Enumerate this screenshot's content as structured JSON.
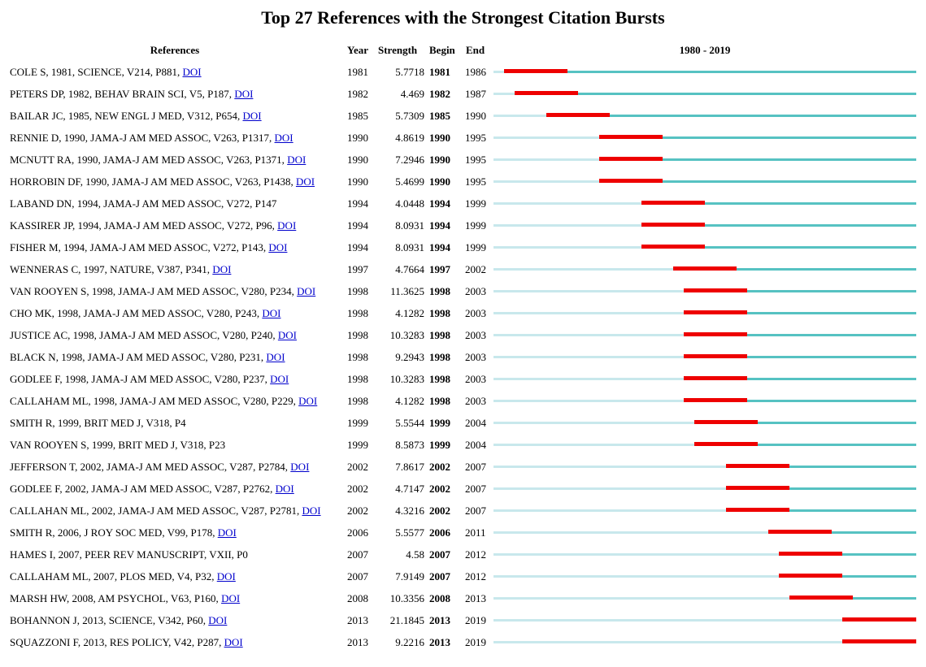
{
  "title": "Top 27 References with the Strongest Citation Bursts",
  "headers": {
    "references": "References",
    "year": "Year",
    "strength": "Strength",
    "begin": "Begin",
    "end": "End",
    "range": "1980 - 2019"
  },
  "colors": {
    "burst": "#ee0000",
    "active": "#56c2c2",
    "inactive": "#c8e8ec",
    "link": "#0000cc"
  },
  "chart_data": {
    "type": "table",
    "title": "Top 27 References with the Strongest Citation Bursts",
    "timeline_range": [
      1980,
      2019
    ],
    "rows": [
      {
        "ref": "COLE S, 1981, SCIENCE, V214, P881, ",
        "doi": "DOI",
        "year": 1981,
        "strength": "5.7718",
        "begin": 1981,
        "end": 1986
      },
      {
        "ref": "PETERS DP, 1982, BEHAV BRAIN SCI, V5, P187, ",
        "doi": "DOI",
        "year": 1982,
        "strength": "4.469",
        "begin": 1982,
        "end": 1987
      },
      {
        "ref": "BAILAR JC, 1985, NEW ENGL J MED, V312, P654, ",
        "doi": "DOI",
        "year": 1985,
        "strength": "5.7309",
        "begin": 1985,
        "end": 1990
      },
      {
        "ref": "RENNIE D, 1990, JAMA-J AM MED ASSOC, V263, P1317, ",
        "doi": "DOI",
        "year": 1990,
        "strength": "4.8619",
        "begin": 1990,
        "end": 1995
      },
      {
        "ref": "MCNUTT RA, 1990, JAMA-J AM MED ASSOC, V263, P1371, ",
        "doi": "DOI",
        "year": 1990,
        "strength": "7.2946",
        "begin": 1990,
        "end": 1995
      },
      {
        "ref": "HORROBIN DF, 1990, JAMA-J AM MED ASSOC, V263, P1438, ",
        "doi": "DOI",
        "year": 1990,
        "strength": "5.4699",
        "begin": 1990,
        "end": 1995
      },
      {
        "ref": "LABAND DN, 1994, JAMA-J AM MED ASSOC, V272, P147",
        "doi": "",
        "year": 1994,
        "strength": "4.0448",
        "begin": 1994,
        "end": 1999
      },
      {
        "ref": "KASSIRER JP, 1994, JAMA-J AM MED ASSOC, V272, P96, ",
        "doi": "DOI",
        "year": 1994,
        "strength": "8.0931",
        "begin": 1994,
        "end": 1999
      },
      {
        "ref": "FISHER M, 1994, JAMA-J AM MED ASSOC, V272, P143, ",
        "doi": "DOI",
        "year": 1994,
        "strength": "8.0931",
        "begin": 1994,
        "end": 1999
      },
      {
        "ref": "WENNERAS C, 1997, NATURE, V387, P341, ",
        "doi": "DOI",
        "year": 1997,
        "strength": "4.7664",
        "begin": 1997,
        "end": 2002
      },
      {
        "ref": "VAN ROOYEN S, 1998, JAMA-J AM MED ASSOC, V280, P234, ",
        "doi": "DOI",
        "year": 1998,
        "strength": "11.3625",
        "begin": 1998,
        "end": 2003
      },
      {
        "ref": "CHO MK, 1998, JAMA-J AM MED ASSOC, V280, P243, ",
        "doi": "DOI",
        "year": 1998,
        "strength": "4.1282",
        "begin": 1998,
        "end": 2003
      },
      {
        "ref": "JUSTICE AC, 1998, JAMA-J AM MED ASSOC, V280, P240, ",
        "doi": "DOI",
        "year": 1998,
        "strength": "10.3283",
        "begin": 1998,
        "end": 2003
      },
      {
        "ref": "BLACK N, 1998, JAMA-J AM MED ASSOC, V280, P231, ",
        "doi": "DOI",
        "year": 1998,
        "strength": "9.2943",
        "begin": 1998,
        "end": 2003
      },
      {
        "ref": "GODLEE F, 1998, JAMA-J AM MED ASSOC, V280, P237, ",
        "doi": "DOI",
        "year": 1998,
        "strength": "10.3283",
        "begin": 1998,
        "end": 2003
      },
      {
        "ref": "CALLAHAM ML, 1998, JAMA-J AM MED ASSOC, V280, P229, ",
        "doi": "DOI",
        "year": 1998,
        "strength": "4.1282",
        "begin": 1998,
        "end": 2003
      },
      {
        "ref": "SMITH R, 1999, BRIT MED J, V318, P4",
        "doi": "",
        "year": 1999,
        "strength": "5.5544",
        "begin": 1999,
        "end": 2004
      },
      {
        "ref": "VAN ROOYEN S, 1999, BRIT MED J, V318, P23",
        "doi": "",
        "year": 1999,
        "strength": "8.5873",
        "begin": 1999,
        "end": 2004
      },
      {
        "ref": "JEFFERSON T, 2002, JAMA-J AM MED ASSOC, V287, P2784, ",
        "doi": "DOI",
        "year": 2002,
        "strength": "7.8617",
        "begin": 2002,
        "end": 2007
      },
      {
        "ref": "GODLEE F, 2002, JAMA-J AM MED ASSOC, V287, P2762, ",
        "doi": "DOI",
        "year": 2002,
        "strength": "4.7147",
        "begin": 2002,
        "end": 2007
      },
      {
        "ref": "CALLAHAN ML, 2002, JAMA-J AM MED ASSOC, V287, P2781, ",
        "doi": "DOI",
        "year": 2002,
        "strength": "4.3216",
        "begin": 2002,
        "end": 2007
      },
      {
        "ref": "SMITH R, 2006, J ROY SOC MED, V99, P178, ",
        "doi": "DOI",
        "year": 2006,
        "strength": "5.5577",
        "begin": 2006,
        "end": 2011
      },
      {
        "ref": "HAMES I, 2007, PEER REV MANUSCRIPT, VXII, P0",
        "doi": "",
        "year": 2007,
        "strength": "4.58",
        "begin": 2007,
        "end": 2012
      },
      {
        "ref": "CALLAHAM ML, 2007, PLOS MED, V4, P32, ",
        "doi": "DOI",
        "year": 2007,
        "strength": "7.9149",
        "begin": 2007,
        "end": 2012
      },
      {
        "ref": "MARSH HW, 2008, AM PSYCHOL, V63, P160, ",
        "doi": "DOI",
        "year": 2008,
        "strength": "10.3356",
        "begin": 2008,
        "end": 2013
      },
      {
        "ref": "BOHANNON J, 2013, SCIENCE, V342, P60, ",
        "doi": "DOI",
        "year": 2013,
        "strength": "21.1845",
        "begin": 2013,
        "end": 2019
      },
      {
        "ref": "SQUAZZONI F, 2013, RES POLICY, V42, P287, ",
        "doi": "DOI",
        "year": 2013,
        "strength": "9.2216",
        "begin": 2013,
        "end": 2019
      }
    ]
  }
}
